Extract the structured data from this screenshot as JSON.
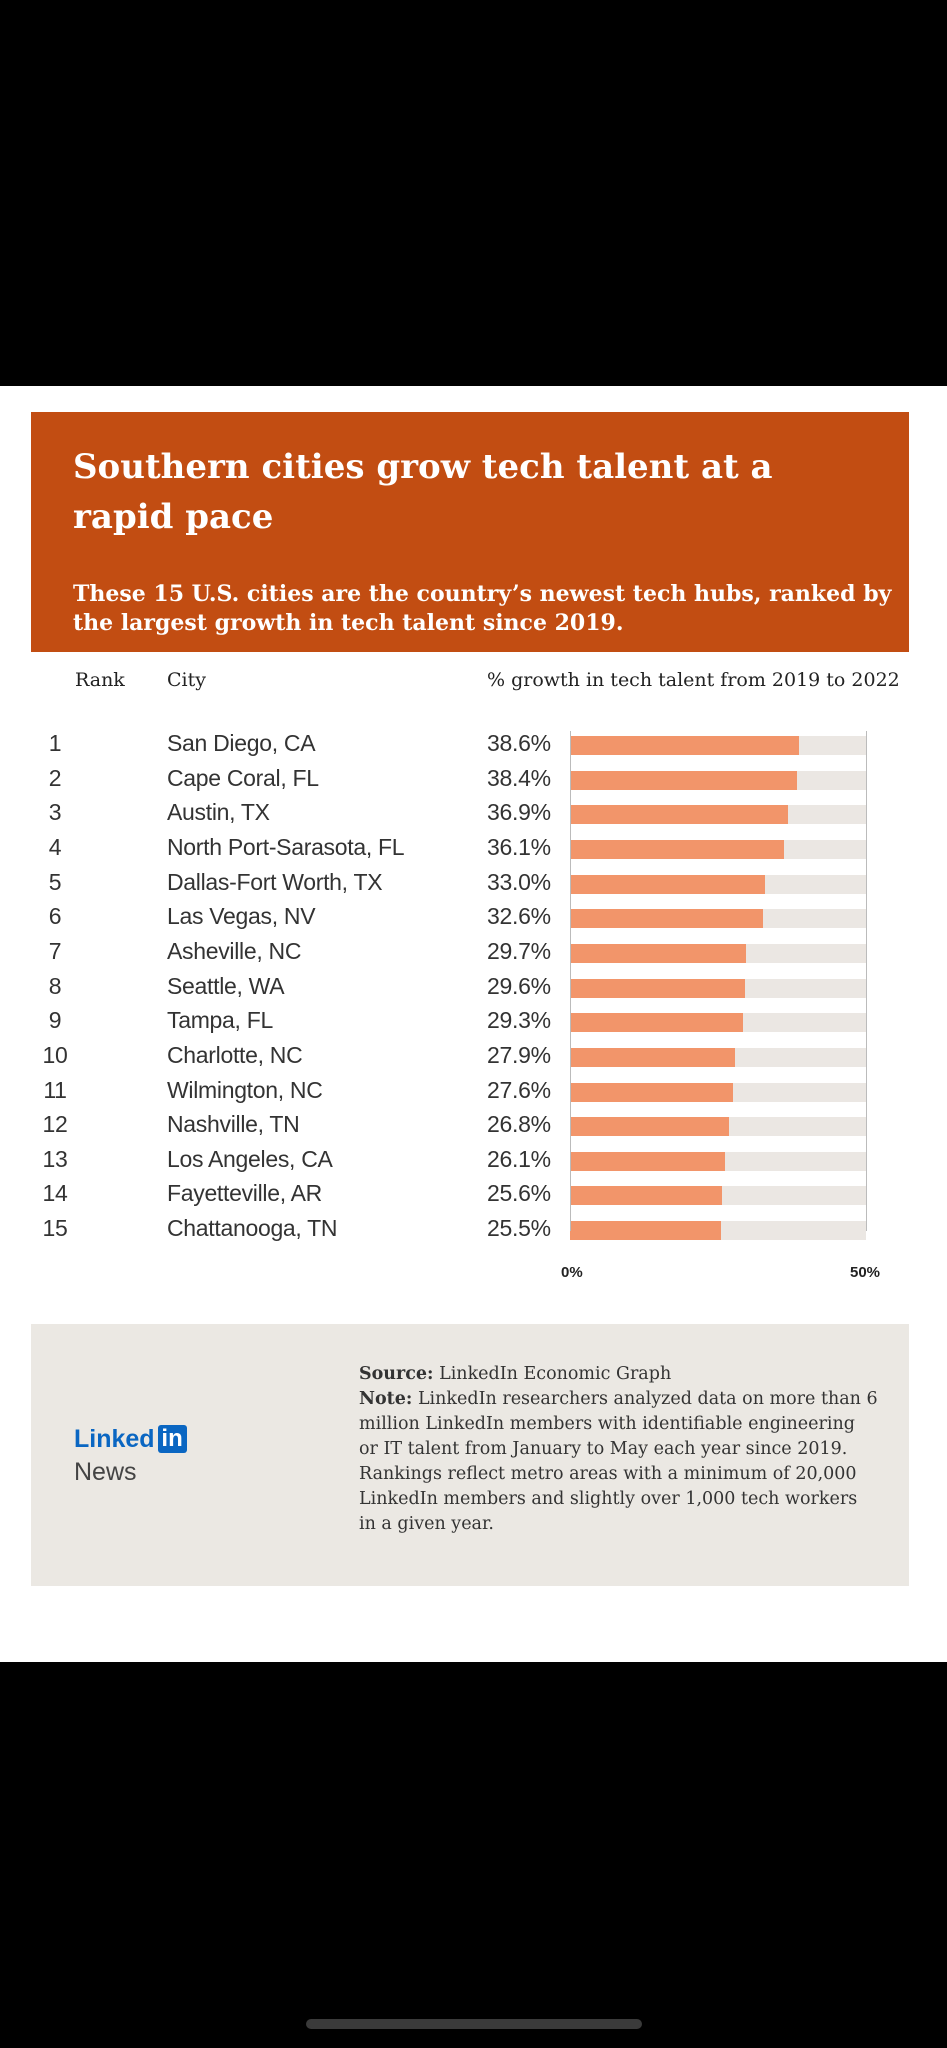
{
  "header": {
    "title": "Southern cities grow tech talent at a rapid pace",
    "subtitle": "These 15 U.S. cities are the country’s newest tech hubs, ranked by the largest growth in tech talent since 2019."
  },
  "columns": {
    "rank": "Rank",
    "city": "City",
    "growth": "% growth in tech talent from 2019 to 2022"
  },
  "chart_data": {
    "type": "bar",
    "orientation": "horizontal",
    "title": "Southern cities grow tech talent at a rapid pace",
    "xlabel": "% growth in tech talent from 2019 to 2022",
    "xlim": [
      0,
      50
    ],
    "x_tick_labels": [
      "0%",
      "50%"
    ],
    "colors": {
      "bar": "#f2956a",
      "track": "#ebe7e3",
      "header": "#c24d12"
    },
    "rows": [
      {
        "rank": "1",
        "city": "San Diego, CA",
        "value": 38.6,
        "label": "38.6%"
      },
      {
        "rank": "2",
        "city": "Cape Coral, FL",
        "value": 38.4,
        "label": "38.4%"
      },
      {
        "rank": "3",
        "city": "Austin, TX",
        "value": 36.9,
        "label": "36.9%"
      },
      {
        "rank": "4",
        "city": "North Port-Sarasota, FL",
        "value": 36.1,
        "label": "36.1%"
      },
      {
        "rank": "5",
        "city": "Dallas-Fort Worth, TX",
        "value": 33.0,
        "label": "33.0%"
      },
      {
        "rank": "6",
        "city": "Las Vegas, NV",
        "value": 32.6,
        "label": "32.6%"
      },
      {
        "rank": "7",
        "city": "Asheville, NC",
        "value": 29.7,
        "label": "29.7%"
      },
      {
        "rank": "8",
        "city": "Seattle, WA",
        "value": 29.6,
        "label": "29.6%"
      },
      {
        "rank": "9",
        "city": "Tampa, FL",
        "value": 29.3,
        "label": "29.3%"
      },
      {
        "rank": "10",
        "city": "Charlotte, NC",
        "value": 27.9,
        "label": "27.9%"
      },
      {
        "rank": "11",
        "city": "Wilmington, NC",
        "value": 27.6,
        "label": "27.6%"
      },
      {
        "rank": "12",
        "city": "Nashville, TN",
        "value": 26.8,
        "label": "26.8%"
      },
      {
        "rank": "13",
        "city": "Los Angeles, CA",
        "value": 26.1,
        "label": "26.1%"
      },
      {
        "rank": "14",
        "city": "Fayetteville, AR",
        "value": 25.6,
        "label": "25.6%"
      },
      {
        "rank": "15",
        "city": "Chattanooga, TN",
        "value": 25.5,
        "label": "25.5%"
      }
    ]
  },
  "footer": {
    "source_label": "Source:",
    "source_text": "LinkedIn Economic Graph",
    "note_label": "Note:",
    "note_text": "LinkedIn researchers analyzed data on more than 6 million LinkedIn members with identifiable engineering or IT talent from January to May each year since 2019. Rankings reflect metro areas with a minimum of 20,000 LinkedIn members and slightly over 1,000 tech workers in a given year.",
    "logo_word": "Linked",
    "logo_in": "in",
    "logo_news": "News"
  }
}
